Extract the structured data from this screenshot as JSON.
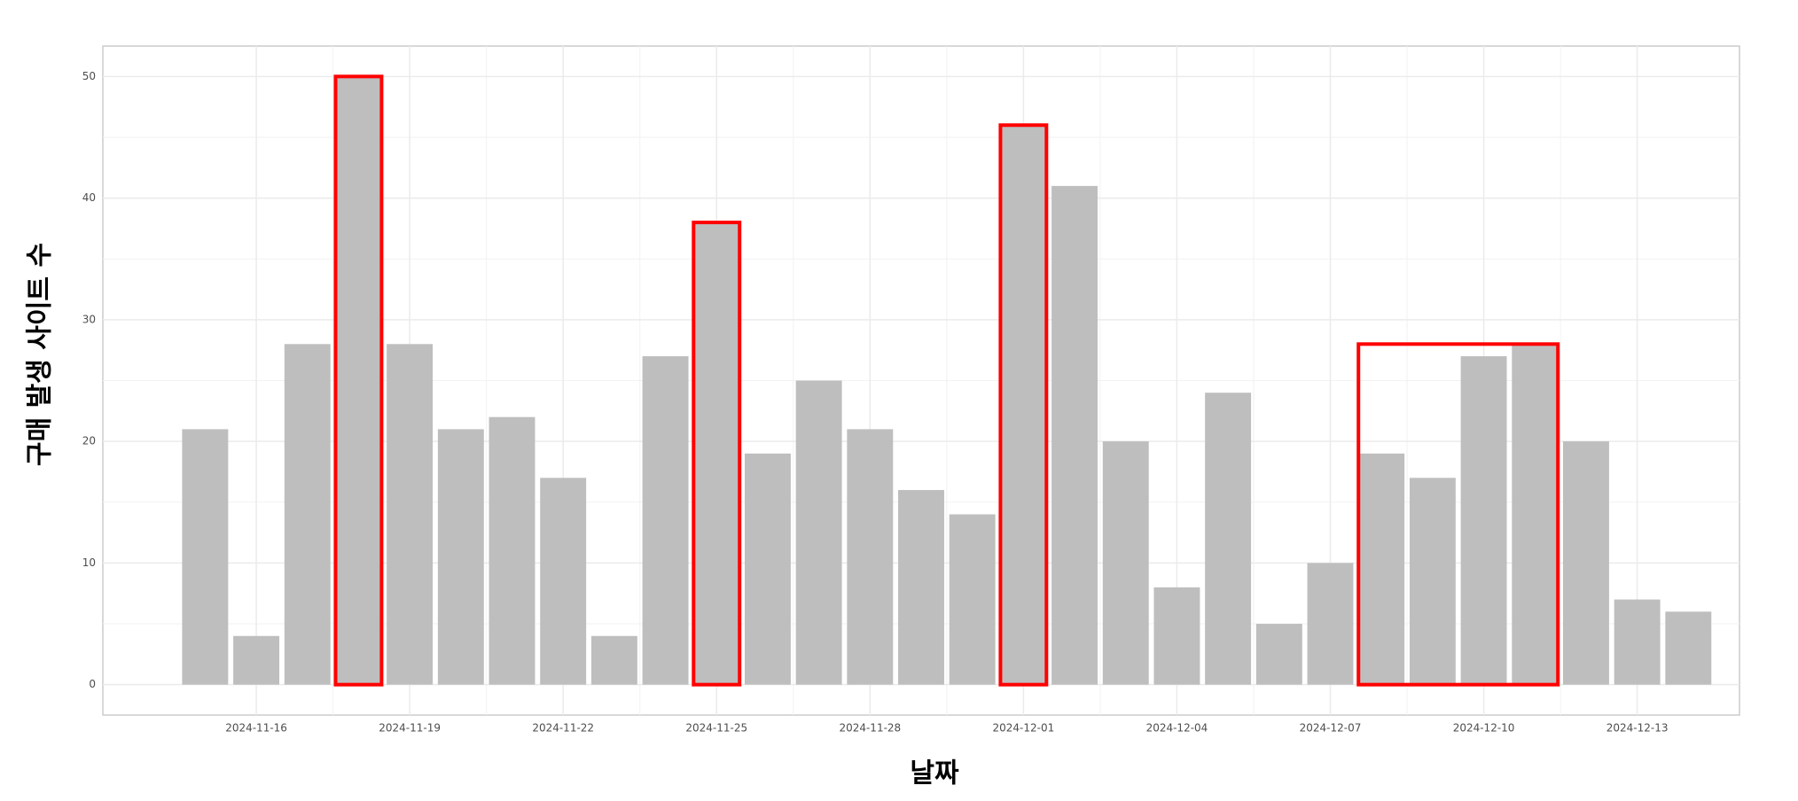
{
  "chart_data": {
    "type": "bar",
    "x_label": "날짜",
    "y_label": "구매 발생 사이트 수",
    "x": [
      "2024-11-15",
      "2024-11-16",
      "2024-11-17",
      "2024-11-18",
      "2024-11-19",
      "2024-11-20",
      "2024-11-21",
      "2024-11-22",
      "2024-11-23",
      "2024-11-24",
      "2024-11-25",
      "2024-11-26",
      "2024-11-27",
      "2024-11-28",
      "2024-11-29",
      "2024-11-30",
      "2024-12-01",
      "2024-12-02",
      "2024-12-03",
      "2024-12-04",
      "2024-12-05",
      "2024-12-06",
      "2024-12-07",
      "2024-12-08",
      "2024-12-09",
      "2024-12-10",
      "2024-12-11",
      "2024-12-12",
      "2024-12-13",
      "2024-12-14"
    ],
    "values": [
      21,
      4,
      28,
      50,
      28,
      21,
      22,
      17,
      4,
      27,
      38,
      19,
      25,
      21,
      16,
      14,
      46,
      41,
      20,
      8,
      24,
      5,
      10,
      19,
      17,
      27,
      28,
      20,
      7,
      6
    ],
    "color": "#bebebe",
    "xlim": [
      "2024-11-13",
      "2024-12-15"
    ],
    "xticks": [
      "2024-11-16",
      "2024-11-19",
      "2024-11-22",
      "2024-11-25",
      "2024-11-28",
      "2024-12-01",
      "2024-12-04",
      "2024-12-07",
      "2024-12-10",
      "2024-12-13"
    ],
    "ylim": [
      -2.5,
      52.5
    ],
    "yticks": [
      0,
      10,
      20,
      30,
      40,
      50
    ],
    "grid": true,
    "highlight_color": "#ff0000",
    "highlights": [
      [
        "2024-11-18",
        "2024-11-18"
      ],
      [
        "2024-11-25",
        "2024-11-25"
      ],
      [
        "2024-12-01",
        "2024-12-01"
      ],
      [
        "2024-12-08",
        "2024-12-11"
      ]
    ]
  }
}
